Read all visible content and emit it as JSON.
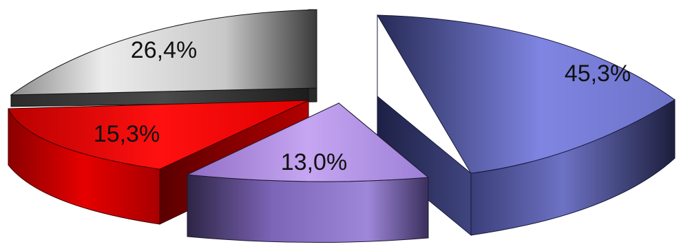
{
  "chart_data": {
    "type": "pie",
    "style": "3d-exploded",
    "title": "",
    "legend": "none",
    "slices": [
      {
        "label": "45,3%",
        "value": 45.3,
        "color": "#7f85e2"
      },
      {
        "label": "13,0%",
        "value": 13.0,
        "color": "#b998ea"
      },
      {
        "label": "15,3%",
        "value": 15.3,
        "color": "#ff0a0a"
      },
      {
        "label": "26,4%",
        "value": 26.4,
        "color": "#d6d6d6"
      }
    ]
  }
}
